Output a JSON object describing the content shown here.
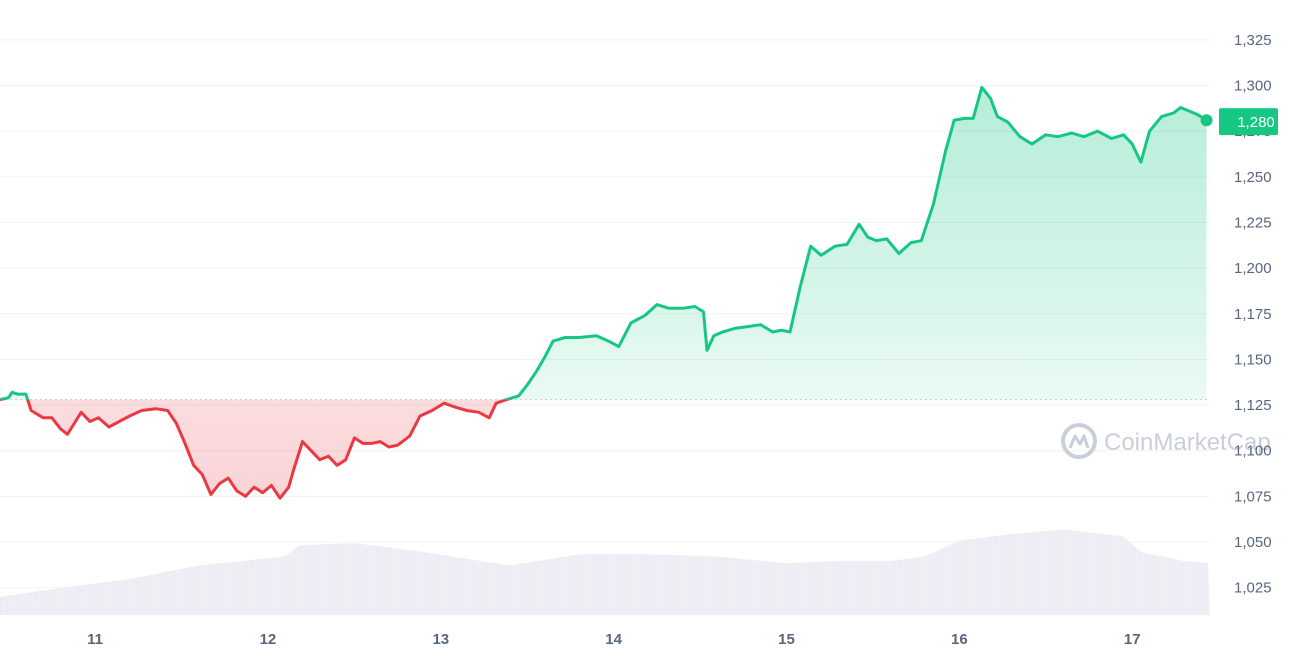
{
  "chart_data": {
    "type": "area",
    "baseline": 1128,
    "current_price": 1280,
    "current_price_label": "1,280",
    "ylim": [
      1010,
      1337
    ],
    "y_ticks": [
      {
        "value": 1325,
        "label": "1,325"
      },
      {
        "value": 1300,
        "label": "1,300"
      },
      {
        "value": 1275,
        "label": "1,275"
      },
      {
        "value": 1250,
        "label": "1,250"
      },
      {
        "value": 1225,
        "label": "1,225"
      },
      {
        "value": 1200,
        "label": "1,200"
      },
      {
        "value": 1175,
        "label": "1,175"
      },
      {
        "value": 1150,
        "label": "1,150"
      },
      {
        "value": 1125,
        "label": "1,125"
      },
      {
        "value": 1100,
        "label": "1,100"
      },
      {
        "value": 1075,
        "label": "1,075"
      },
      {
        "value": 1050,
        "label": "1,050"
      },
      {
        "value": 1025,
        "label": "1,025"
      }
    ],
    "x_ticks": [
      {
        "value": 11,
        "label": "11"
      },
      {
        "value": 12,
        "label": "12"
      },
      {
        "value": 13,
        "label": "13"
      },
      {
        "value": 14,
        "label": "14"
      },
      {
        "value": 15,
        "label": "15"
      },
      {
        "value": 16,
        "label": "16"
      },
      {
        "value": 17,
        "label": "17"
      }
    ],
    "xlim": [
      10.45,
      17.45
    ],
    "price_series": [
      [
        10.45,
        1128
      ],
      [
        10.5,
        1129
      ],
      [
        10.52,
        1132
      ],
      [
        10.55,
        1131
      ],
      [
        10.6,
        1131
      ],
      [
        10.63,
        1122
      ],
      [
        10.7,
        1118
      ],
      [
        10.75,
        1118
      ],
      [
        10.8,
        1112
      ],
      [
        10.84,
        1109
      ],
      [
        10.88,
        1115
      ],
      [
        10.92,
        1121
      ],
      [
        10.97,
        1116
      ],
      [
        11.02,
        1118
      ],
      [
        11.08,
        1113
      ],
      [
        11.14,
        1116
      ],
      [
        11.2,
        1119
      ],
      [
        11.27,
        1122
      ],
      [
        11.35,
        1123
      ],
      [
        11.42,
        1122
      ],
      [
        11.47,
        1115
      ],
      [
        11.52,
        1104
      ],
      [
        11.57,
        1092
      ],
      [
        11.62,
        1087
      ],
      [
        11.67,
        1076
      ],
      [
        11.72,
        1082
      ],
      [
        11.77,
        1085
      ],
      [
        11.82,
        1078
      ],
      [
        11.87,
        1075
      ],
      [
        11.92,
        1080
      ],
      [
        11.97,
        1077
      ],
      [
        12.02,
        1081
      ],
      [
        12.07,
        1074
      ],
      [
        12.12,
        1080
      ],
      [
        12.15,
        1090
      ],
      [
        12.2,
        1105
      ],
      [
        12.25,
        1100
      ],
      [
        12.3,
        1095
      ],
      [
        12.35,
        1097
      ],
      [
        12.4,
        1092
      ],
      [
        12.45,
        1095
      ],
      [
        12.5,
        1107
      ],
      [
        12.55,
        1104
      ],
      [
        12.6,
        1104
      ],
      [
        12.65,
        1105
      ],
      [
        12.7,
        1102
      ],
      [
        12.75,
        1103
      ],
      [
        12.82,
        1108
      ],
      [
        12.88,
        1119
      ],
      [
        12.95,
        1122
      ],
      [
        13.02,
        1126
      ],
      [
        13.08,
        1124
      ],
      [
        13.15,
        1122
      ],
      [
        13.22,
        1121
      ],
      [
        13.28,
        1118
      ],
      [
        13.32,
        1126
      ],
      [
        13.38,
        1128
      ],
      [
        13.45,
        1130
      ],
      [
        13.5,
        1136
      ],
      [
        13.55,
        1143
      ],
      [
        13.6,
        1151
      ],
      [
        13.65,
        1160
      ],
      [
        13.72,
        1162
      ],
      [
        13.8,
        1162
      ],
      [
        13.9,
        1163
      ],
      [
        13.97,
        1160
      ],
      [
        14.03,
        1157
      ],
      [
        14.1,
        1170
      ],
      [
        14.18,
        1174
      ],
      [
        14.25,
        1180
      ],
      [
        14.32,
        1178
      ],
      [
        14.4,
        1178
      ],
      [
        14.47,
        1179
      ],
      [
        14.52,
        1176
      ],
      [
        14.54,
        1155
      ],
      [
        14.58,
        1163
      ],
      [
        14.63,
        1165
      ],
      [
        14.7,
        1167
      ],
      [
        14.78,
        1168
      ],
      [
        14.85,
        1169
      ],
      [
        14.92,
        1165
      ],
      [
        14.97,
        1166
      ],
      [
        15.02,
        1165
      ],
      [
        15.08,
        1190
      ],
      [
        15.14,
        1212
      ],
      [
        15.2,
        1207
      ],
      [
        15.28,
        1212
      ],
      [
        15.35,
        1213
      ],
      [
        15.42,
        1224
      ],
      [
        15.47,
        1217
      ],
      [
        15.52,
        1215
      ],
      [
        15.58,
        1216
      ],
      [
        15.65,
        1208
      ],
      [
        15.72,
        1214
      ],
      [
        15.78,
        1215
      ],
      [
        15.85,
        1235
      ],
      [
        15.92,
        1264
      ],
      [
        15.97,
        1281
      ],
      [
        16.03,
        1282
      ],
      [
        16.08,
        1282
      ],
      [
        16.13,
        1299
      ],
      [
        16.18,
        1293
      ],
      [
        16.22,
        1283
      ],
      [
        16.28,
        1280
      ],
      [
        16.35,
        1272
      ],
      [
        16.42,
        1268
      ],
      [
        16.5,
        1273
      ],
      [
        16.57,
        1272
      ],
      [
        16.65,
        1274
      ],
      [
        16.72,
        1272
      ],
      [
        16.8,
        1275
      ],
      [
        16.88,
        1271
      ],
      [
        16.95,
        1273
      ],
      [
        17.0,
        1268
      ],
      [
        17.05,
        1258
      ],
      [
        17.1,
        1275
      ],
      [
        17.17,
        1283
      ],
      [
        17.24,
        1285
      ],
      [
        17.28,
        1288
      ],
      [
        17.33,
        1286
      ],
      [
        17.38,
        1284
      ],
      [
        17.43,
        1281
      ]
    ],
    "volume_profile": [
      [
        10.45,
        0.08
      ],
      [
        10.8,
        0.12
      ],
      [
        11.2,
        0.16
      ],
      [
        11.6,
        0.22
      ],
      [
        12.1,
        0.26
      ],
      [
        12.18,
        0.31
      ],
      [
        12.5,
        0.32
      ],
      [
        12.9,
        0.28
      ],
      [
        13.15,
        0.25
      ],
      [
        13.4,
        0.22
      ],
      [
        13.8,
        0.27
      ],
      [
        14.2,
        0.27
      ],
      [
        14.6,
        0.26
      ],
      [
        15.0,
        0.23
      ],
      [
        15.3,
        0.24
      ],
      [
        15.6,
        0.24
      ],
      [
        15.8,
        0.26
      ],
      [
        16.0,
        0.33
      ],
      [
        16.3,
        0.36
      ],
      [
        16.6,
        0.38
      ],
      [
        16.95,
        0.35
      ],
      [
        17.05,
        0.28
      ],
      [
        17.3,
        0.24
      ],
      [
        17.45,
        0.23
      ]
    ],
    "up_color": "#16c784",
    "down_color": "#ea3943",
    "grid": true,
    "watermark": "CoinMarketCap"
  }
}
